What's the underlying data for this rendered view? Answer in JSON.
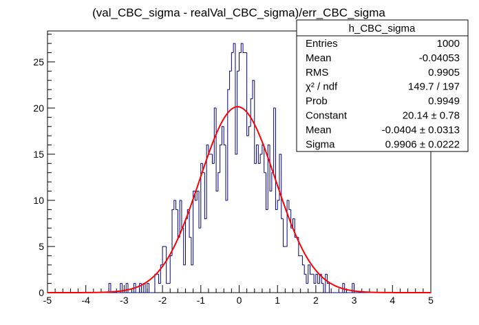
{
  "chart_data": {
    "type": "histogram",
    "title": "(val_CBC_sigma - realVal_CBC_sigma)/err_CBC_sigma",
    "xlabel": "",
    "ylabel": "",
    "xlim": [
      -5,
      5
    ],
    "ylim": [
      0,
      28.35
    ],
    "bins": 200,
    "bin_width": 0.05,
    "x_ticks": [
      -5,
      -4,
      -3,
      -2,
      -1,
      0,
      1,
      2,
      3,
      4,
      5
    ],
    "x_tick_labels": [
      "-5",
      "-4",
      "-3",
      "-2",
      "-1",
      "0",
      "1",
      "2",
      "3",
      "4",
      "5"
    ],
    "y_ticks": [
      0,
      5,
      10,
      15,
      20,
      25
    ],
    "y_tick_labels": [
      "0",
      "5",
      "10",
      "15",
      "20",
      "25"
    ],
    "histogram_color": "#000080",
    "fit_color": "#ff0000",
    "bin_counts": [
      0,
      0,
      0,
      0,
      0,
      0,
      0,
      0,
      0,
      0,
      0,
      0,
      0,
      0,
      0,
      0,
      0,
      0,
      0,
      0,
      0,
      0,
      0,
      0,
      0,
      0,
      0,
      0,
      0,
      0,
      0,
      0,
      1,
      0,
      0,
      0,
      0,
      0,
      1,
      0,
      0,
      1,
      0,
      0,
      0,
      1,
      0,
      0,
      1,
      0,
      1,
      0,
      1,
      0,
      0,
      0,
      2,
      2,
      1,
      3,
      5,
      5,
      1,
      1,
      4,
      9,
      10,
      9,
      6,
      10,
      7,
      3,
      8,
      9,
      6,
      3,
      11,
      10,
      11,
      7,
      14,
      13,
      8,
      16,
      15,
      15,
      14,
      20,
      11,
      13,
      16,
      18,
      16,
      10,
      22,
      24,
      26,
      27,
      15,
      24,
      26,
      27,
      26,
      26,
      17,
      18,
      21,
      23,
      14,
      16,
      14,
      15,
      16,
      13,
      9,
      16,
      11,
      13,
      20,
      9,
      10,
      15,
      8,
      5,
      5,
      10,
      9,
      7,
      8,
      6,
      6,
      4,
      4,
      3,
      2,
      1,
      3,
      2,
      2,
      1,
      2,
      1,
      2,
      1,
      0,
      2,
      1,
      0,
      0,
      0,
      0,
      0,
      0,
      0,
      1,
      0,
      0,
      0,
      0,
      1,
      0,
      0,
      0,
      0,
      0,
      0,
      0,
      0,
      0,
      0,
      0,
      0,
      0,
      0,
      0,
      0,
      0,
      0,
      0,
      0,
      0,
      0,
      0,
      0,
      0,
      0,
      0,
      0,
      0,
      0,
      0,
      0,
      0,
      0,
      0,
      0,
      0,
      0,
      0,
      0
    ],
    "fit": {
      "function": "gaus",
      "constant": 20.14,
      "mean": -0.0404,
      "sigma": 0.9906
    },
    "stats_box": {
      "name": "h_CBC_sigma",
      "rows": [
        {
          "label": "Entries",
          "value": "1000"
        },
        {
          "label": "Mean",
          "value": "-0.04053"
        },
        {
          "label": "RMS",
          "value": "0.9905"
        },
        {
          "label": "χ² / ndf",
          "value": "149.7 / 197"
        },
        {
          "label": "Prob",
          "value": "0.9949"
        },
        {
          "label": "Constant",
          "value": "20.14 ± 0.78"
        },
        {
          "label": "Mean",
          "value": "-0.0404 ± 0.0313"
        },
        {
          "label": "Sigma",
          "value": "0.9906 ± 0.0222"
        }
      ]
    }
  }
}
